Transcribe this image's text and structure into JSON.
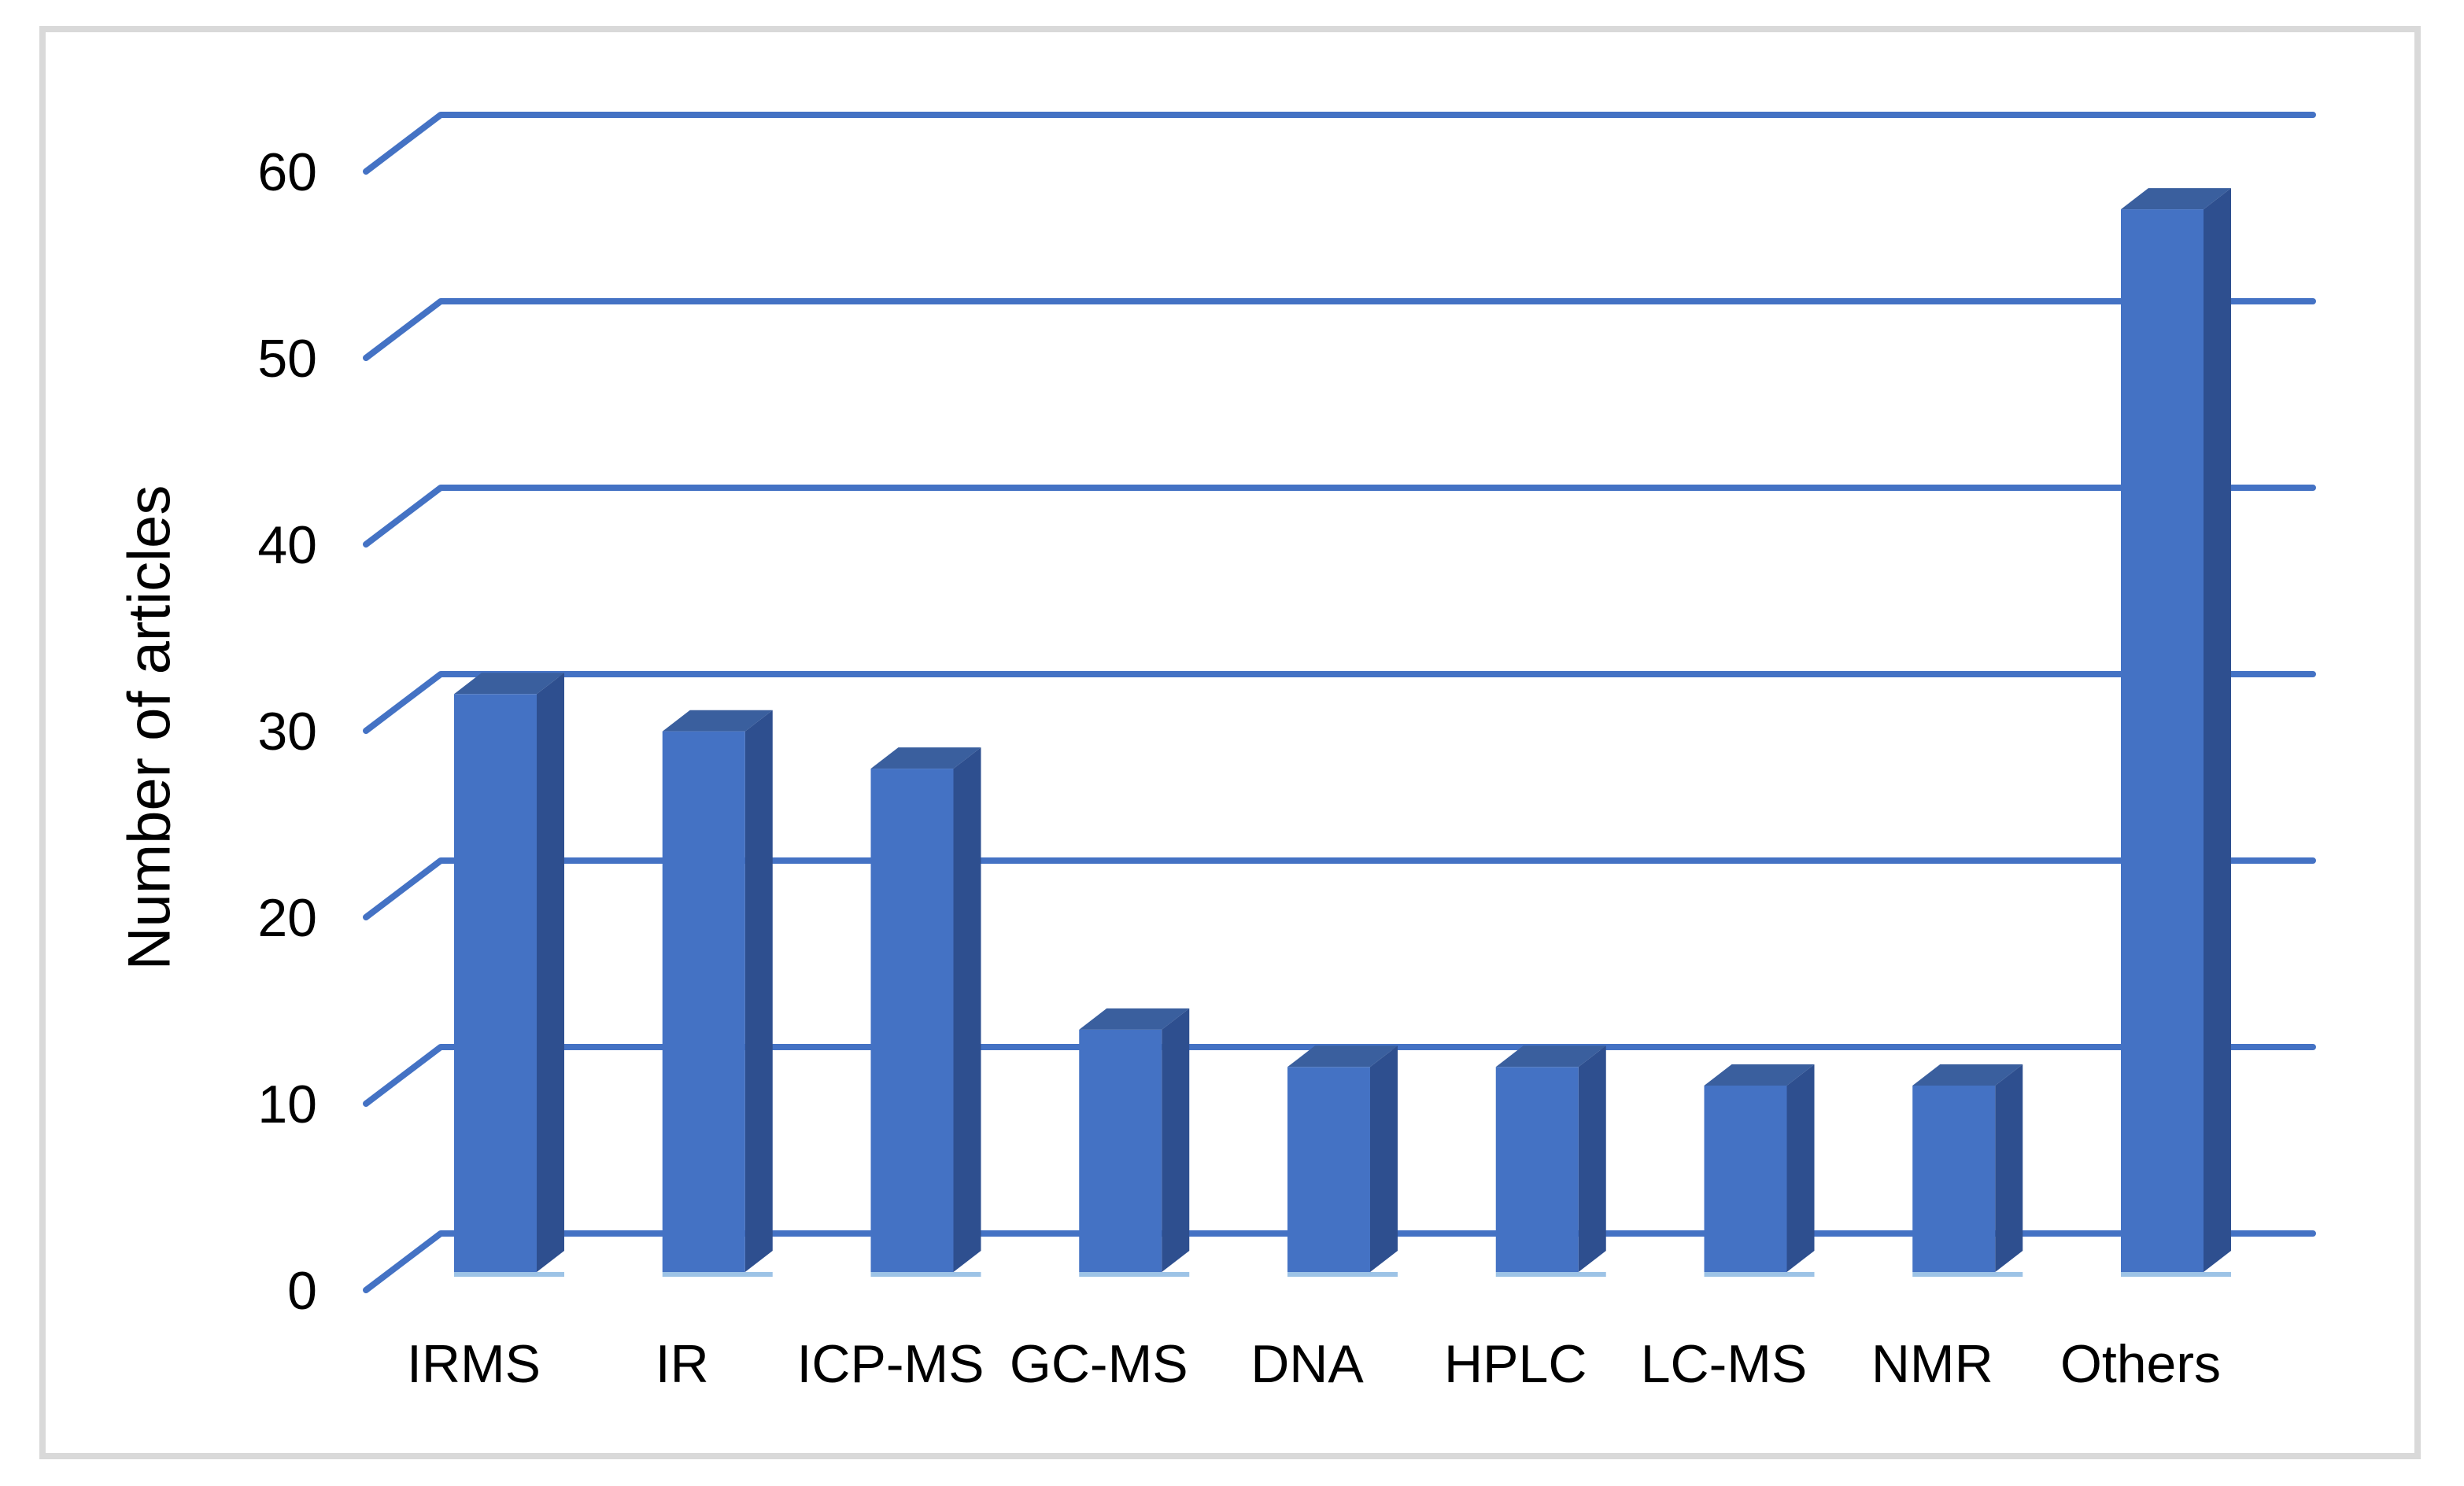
{
  "window": {
    "background": "#ffffff",
    "border_color": "#d9d9d9"
  },
  "chart_data": {
    "type": "bar",
    "variant": "3d-column",
    "title": "",
    "subtitle": "",
    "xlabel": "",
    "ylabel": "Number of articles",
    "categories": [
      "IRMS",
      "IR",
      "ICP-MS",
      "GC-MS",
      "DNA",
      "HPLC",
      "LC-MS",
      "NMR",
      "Others"
    ],
    "values": [
      31,
      29,
      27,
      13,
      11,
      11,
      10,
      10,
      57
    ],
    "yticks": [
      0,
      10,
      20,
      30,
      40,
      50,
      60
    ],
    "ylim": [
      0,
      60
    ],
    "grid": true,
    "legend": false,
    "colors": {
      "bar_front": "#4472C4",
      "bar_side": "#2E4F8F",
      "bar_top": "#3A5F9E",
      "gridline": "#4472C4",
      "floor_highlight": "#9DC3E6",
      "text": "#000000"
    }
  }
}
